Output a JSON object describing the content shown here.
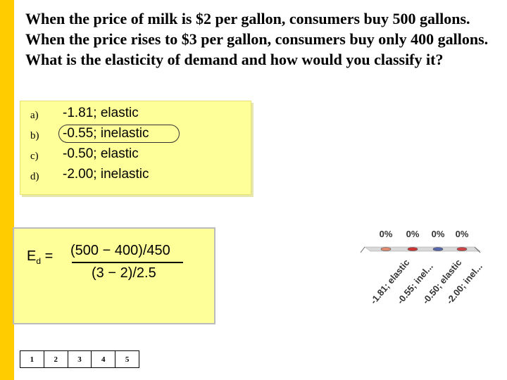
{
  "question": "When the price of milk is $2 per gallon, consumers buy 500 gallons.  When the price rises to $3 per gallon, consumers buy only 400 gallons.  What is the elasticity of demand and how would you classify it?",
  "answers": [
    {
      "letter": "a)",
      "text": "-1.81; elastic"
    },
    {
      "letter": "b)",
      "text": "-0.55; inelastic"
    },
    {
      "letter": "c)",
      "text": "-0.50; elastic"
    },
    {
      "letter": "d)",
      "text": "-2.00; inelastic"
    }
  ],
  "formula": {
    "lhs_main": "E",
    "lhs_sub": "d",
    "equals": "=",
    "numerator": "(500 − 400)/450",
    "denominator": "(3 − 2)/2.5"
  },
  "countdown": [
    "1",
    "2",
    "3",
    "4",
    "5"
  ],
  "colors": {
    "left_bar": "#ffcc00",
    "answer_box": "#ffff99",
    "bar_a": "#e08a70",
    "bar_b": "#cc3333",
    "bar_c": "#5566aa",
    "bar_d": "#cc4444"
  },
  "chart_data": {
    "type": "bar",
    "categories": [
      "-1.81; elastic",
      "-0.55; inel...",
      "-0.50; elastic",
      "-2.00; inel..."
    ],
    "values": [
      0,
      0,
      0,
      0
    ],
    "value_labels": [
      "0%",
      "0%",
      "0%",
      "0%"
    ],
    "ylim": [
      0,
      100
    ],
    "grid": false,
    "legend": "none"
  }
}
